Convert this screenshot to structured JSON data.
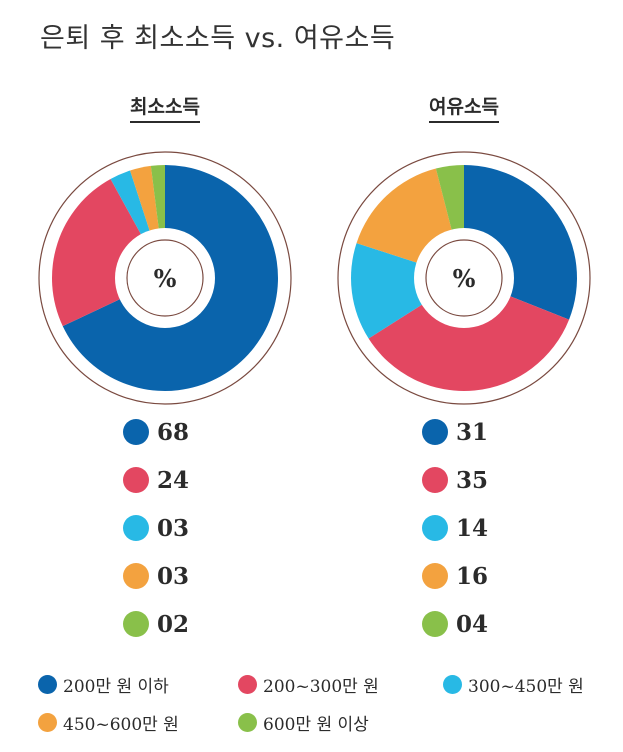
{
  "title": "은퇴 후 최소소득 vs. 여유소득",
  "center_label": "%",
  "colors": [
    "#0a64ac",
    "#e34761",
    "#28b9e5",
    "#f3a23f",
    "#89c04a"
  ],
  "chart_data": [
    {
      "type": "pie",
      "title": "최소소득",
      "categories": [
        "200만 원 이하",
        "200~300만 원",
        "300~450만 원",
        "450~600만 원",
        "600만 원 이상"
      ],
      "values": [
        68,
        24,
        3,
        3,
        2
      ],
      "value_labels": [
        "68",
        "24",
        "03",
        "03",
        "02"
      ]
    },
    {
      "type": "pie",
      "title": "여유소득",
      "categories": [
        "200만 원 이하",
        "200~300만 원",
        "300~450만 원",
        "450~600만 원",
        "600만 원 이상"
      ],
      "values": [
        31,
        35,
        14,
        16,
        4
      ],
      "value_labels": [
        "31",
        "35",
        "14",
        "16",
        "04"
      ]
    }
  ],
  "legend": [
    "200만 원 이하",
    "200~300만 원",
    "300~450만 원",
    "450~600만 원",
    "600만 원 이상"
  ]
}
